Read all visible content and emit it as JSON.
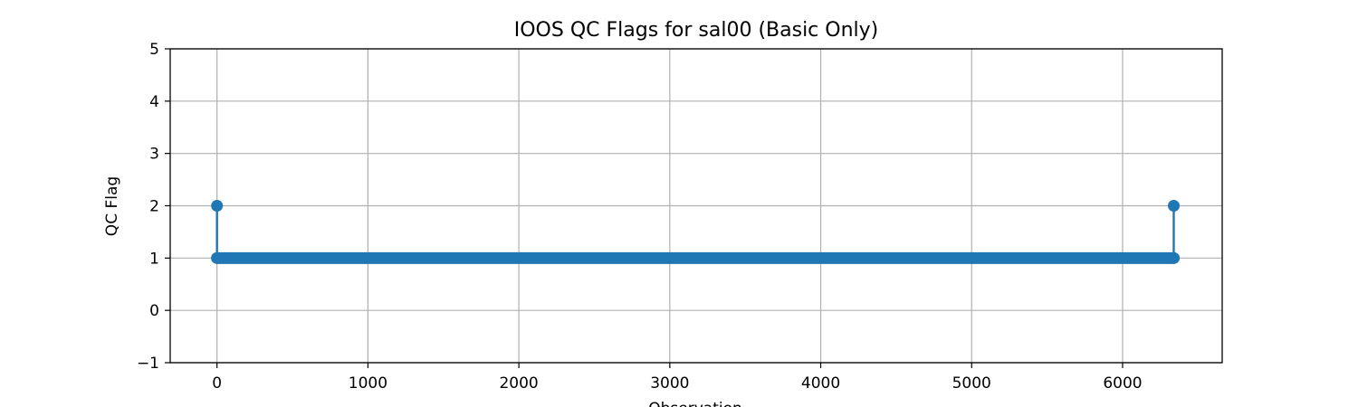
{
  "chart_data": {
    "type": "scatter",
    "title": "IOOS QC Flags for sal00 (Basic Only)",
    "xlabel": "Observation",
    "ylabel": "QC Flag",
    "xlim": [
      -310,
      6660
    ],
    "ylim": [
      -1,
      5
    ],
    "x_ticks": [
      0,
      1000,
      2000,
      3000,
      4000,
      5000,
      6000
    ],
    "x_tick_labels": [
      "0",
      "1000",
      "2000",
      "3000",
      "4000",
      "5000",
      "6000"
    ],
    "y_ticks": [
      -1,
      0,
      1,
      2,
      3,
      4,
      5
    ],
    "y_tick_labels": [
      "−1",
      "0",
      "1",
      "2",
      "3",
      "4",
      "5"
    ],
    "grid": true,
    "series": [
      {
        "style": "line-with-markers",
        "color": "#1f77b4",
        "observation_range": [
          0,
          6339
        ],
        "baseline_flag": 1,
        "spikes": [
          {
            "x": 0,
            "y": 2
          },
          {
            "x": 6339,
            "y": 2
          }
        ]
      }
    ]
  }
}
